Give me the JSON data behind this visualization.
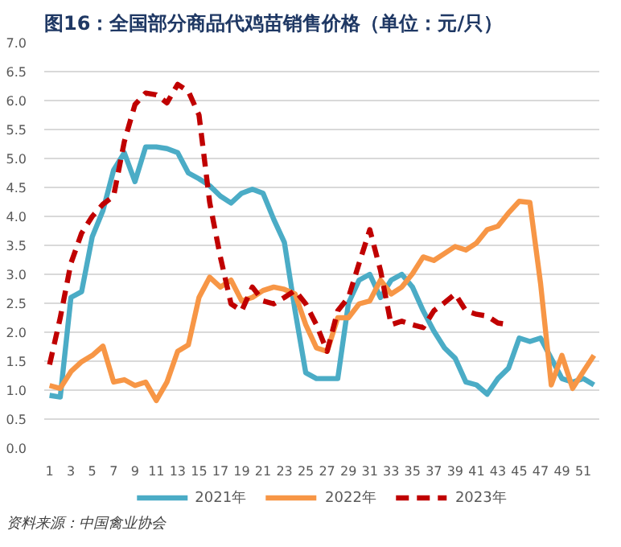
{
  "chart_data": {
    "type": "line",
    "title": "图16：全国部分商品代鸡苗销售价格（单位：元/只）",
    "annotations": [
      "资料来源：中国禽业协会"
    ],
    "x": [
      1,
      2,
      3,
      4,
      5,
      6,
      7,
      8,
      9,
      10,
      11,
      12,
      13,
      14,
      15,
      16,
      17,
      18,
      19,
      20,
      21,
      22,
      23,
      24,
      25,
      26,
      27,
      28,
      29,
      30,
      31,
      32,
      33,
      34,
      35,
      36,
      37,
      38,
      39,
      40,
      41,
      42,
      43,
      44,
      45,
      46,
      47,
      48,
      49,
      50,
      51,
      52
    ],
    "xlim": [
      0.5,
      52.5
    ],
    "xticks": [
      1,
      3,
      5,
      7,
      9,
      11,
      13,
      15,
      17,
      19,
      21,
      23,
      25,
      27,
      29,
      31,
      33,
      35,
      37,
      39,
      41,
      43,
      45,
      47,
      49,
      51
    ],
    "ylim": [
      0,
      7
    ],
    "yticks": [
      {
        "value": 0,
        "label": "0.0"
      },
      {
        "value": 0.5,
        "label": "0.5"
      },
      {
        "value": 1,
        "label": "1.0"
      },
      {
        "value": 1.5,
        "label": "1.5"
      },
      {
        "value": 2,
        "label": "2.0"
      },
      {
        "value": 2.5,
        "label": "2.5"
      },
      {
        "value": 3,
        "label": "3.0"
      },
      {
        "value": 3.5,
        "label": "3.5"
      },
      {
        "value": 4,
        "label": "4.0"
      },
      {
        "value": 4.5,
        "label": "4.5"
      },
      {
        "value": 5,
        "label": "5.0"
      },
      {
        "value": 5.5,
        "label": "5.5"
      },
      {
        "value": 6,
        "label": "6.0"
      },
      {
        "value": 6.5,
        "label": "6.5"
      },
      {
        "value": 7,
        "label": "7.0"
      }
    ],
    "grid": "y",
    "legend": "bottom",
    "series": [
      {
        "name": "2021年",
        "color": "#4bacc6",
        "line_style": "solid",
        "values": [
          0.91,
          0.88,
          2.6,
          2.7,
          3.65,
          4.1,
          4.8,
          5.1,
          4.6,
          5.2,
          5.2,
          5.17,
          5.1,
          4.75,
          4.65,
          4.53,
          4.35,
          4.23,
          4.4,
          4.47,
          4.4,
          3.95,
          3.55,
          2.37,
          1.3,
          1.2,
          1.2,
          1.2,
          2.5,
          2.9,
          3.0,
          2.6,
          2.9,
          3.0,
          2.78,
          2.37,
          2.02,
          1.73,
          1.55,
          1.14,
          1.09,
          0.93,
          1.2,
          1.38,
          1.9,
          1.84,
          1.9,
          1.55,
          1.2,
          1.14,
          1.2,
          1.09
        ]
      },
      {
        "name": "2022年",
        "color": "#f79646",
        "line_style": "solid",
        "values": [
          1.08,
          1.03,
          1.32,
          1.49,
          1.6,
          1.76,
          1.14,
          1.18,
          1.08,
          1.14,
          0.82,
          1.14,
          1.67,
          1.78,
          2.6,
          2.95,
          2.78,
          2.9,
          2.54,
          2.6,
          2.72,
          2.78,
          2.74,
          2.66,
          2.13,
          1.73,
          1.67,
          2.25,
          2.25,
          2.49,
          2.54,
          2.9,
          2.66,
          2.78,
          3.01,
          3.3,
          3.24,
          3.36,
          3.48,
          3.42,
          3.54,
          3.77,
          3.83,
          4.06,
          4.26,
          4.24,
          2.84,
          1.09,
          1.6,
          1.03,
          1.32,
          1.6
        ]
      },
      {
        "name": "2023年",
        "color": "#c00000",
        "line_style": "dashed",
        "values": [
          1.44,
          2.25,
          3.19,
          3.71,
          4.0,
          4.21,
          4.35,
          5.29,
          5.93,
          6.13,
          6.1,
          5.96,
          6.28,
          6.16,
          5.75,
          4.24,
          3.3,
          2.49,
          2.37,
          2.78,
          2.54,
          2.49,
          2.6,
          2.72,
          2.49,
          2.13,
          1.67,
          2.37,
          2.6,
          3.19,
          3.77,
          3.07,
          2.13,
          2.19,
          2.13,
          2.08,
          2.37,
          2.51,
          2.66,
          2.37,
          2.31,
          2.28,
          2.16,
          2.13,
          null,
          null,
          null,
          null,
          null,
          null,
          null,
          null
        ]
      }
    ]
  }
}
